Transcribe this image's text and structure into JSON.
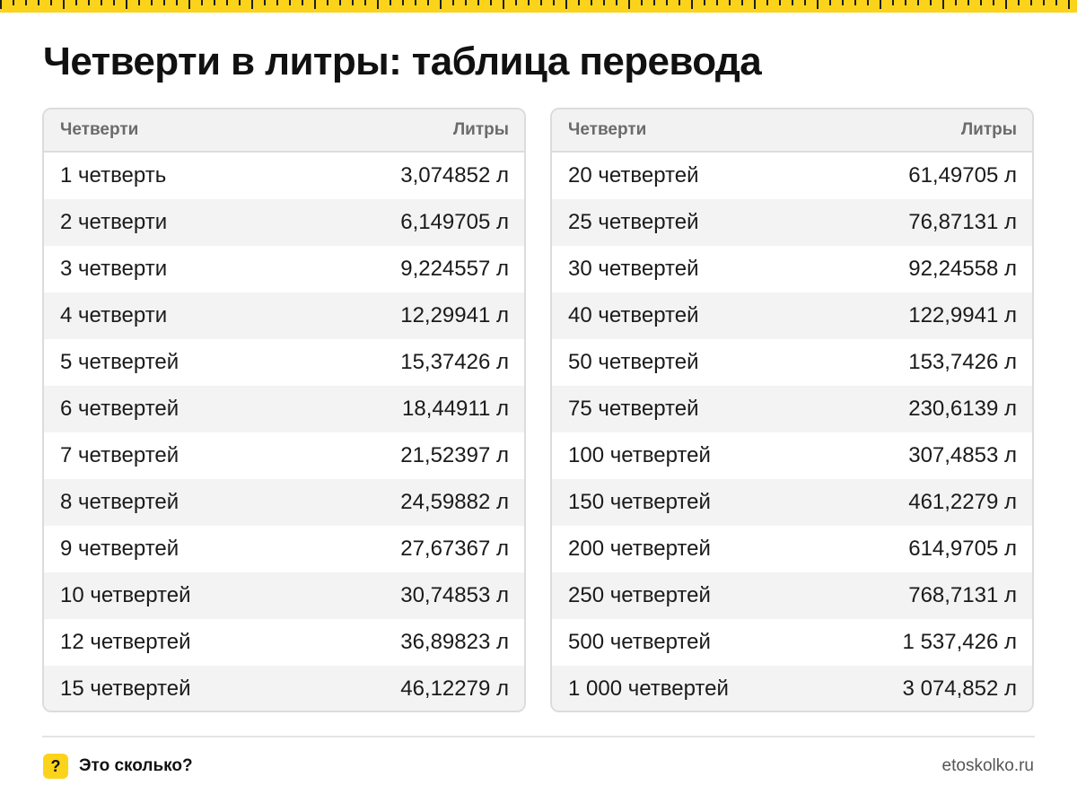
{
  "title": "Четверти в литры: таблица перевода",
  "colors": {
    "accent": "#fbd31b",
    "header_bg": "#f2f2f2",
    "stripe_bg": "#f3f3f3",
    "border": "#dcdcdc"
  },
  "tables": [
    {
      "col_unit": "Четверти",
      "col_value": "Литры",
      "rows": [
        {
          "unit": "1 четверть",
          "value": "3,074852 л"
        },
        {
          "unit": "2 четверти",
          "value": "6,149705 л"
        },
        {
          "unit": "3 четверти",
          "value": "9,224557 л"
        },
        {
          "unit": "4 четверти",
          "value": "12,29941 л"
        },
        {
          "unit": "5 четвертей",
          "value": "15,37426 л"
        },
        {
          "unit": "6 четвертей",
          "value": "18,44911 л"
        },
        {
          "unit": "7 четвертей",
          "value": "21,52397 л"
        },
        {
          "unit": "8 четвертей",
          "value": "24,59882 л"
        },
        {
          "unit": "9 четвертей",
          "value": "27,67367 л"
        },
        {
          "unit": "10 четвертей",
          "value": "30,74853 л"
        },
        {
          "unit": "12 четвертей",
          "value": "36,89823 л"
        },
        {
          "unit": "15 четвертей",
          "value": "46,12279 л"
        }
      ]
    },
    {
      "col_unit": "Четверти",
      "col_value": "Литры",
      "rows": [
        {
          "unit": "20 четвертей",
          "value": "61,49705 л"
        },
        {
          "unit": "25 четвертей",
          "value": "76,87131 л"
        },
        {
          "unit": "30 четвертей",
          "value": "92,24558 л"
        },
        {
          "unit": "40 четвертей",
          "value": "122,9941 л"
        },
        {
          "unit": "50 четвертей",
          "value": "153,7426 л"
        },
        {
          "unit": "75 четвертей",
          "value": "230,6139 л"
        },
        {
          "unit": "100 четвертей",
          "value": "307,4853 л"
        },
        {
          "unit": "150 четвертей",
          "value": "461,2279 л"
        },
        {
          "unit": "200 четвертей",
          "value": "614,9705 л"
        },
        {
          "unit": "250 четвертей",
          "value": "768,7131 л"
        },
        {
          "unit": "500 четвертей",
          "value": "1 537,426 л"
        },
        {
          "unit": "1 000 четвертей",
          "value": "3 074,852 л"
        }
      ]
    }
  ],
  "footer": {
    "badge_icon": "question-mark-icon",
    "badge_glyph": "?",
    "brand": "Это сколько?",
    "site": "etoskolko.ru"
  }
}
